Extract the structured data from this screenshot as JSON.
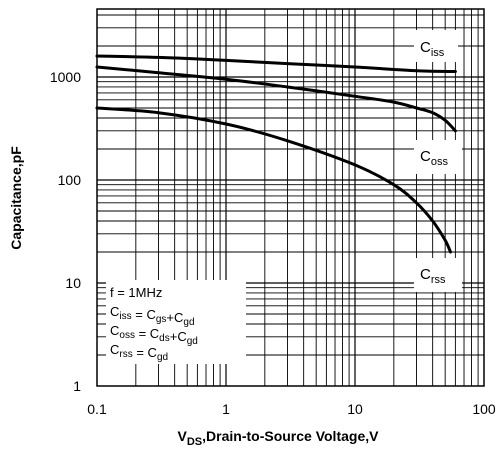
{
  "chart_data": {
    "type": "line",
    "x_scale": "log",
    "y_scale": "log",
    "xlim": [
      0.1,
      100
    ],
    "ylim": [
      1,
      5000
    ],
    "grid": true,
    "x_ticks": [
      "0.1",
      "1",
      "10",
      "100"
    ],
    "y_ticks": [
      "1",
      "10",
      "100",
      "1000"
    ],
    "xlabel": {
      "main": "V",
      "sub": "DS",
      "rest": ",Drain-to-Source Voltage,V"
    },
    "ylabel": "Capacitance,pF",
    "series": [
      {
        "name_main": "C",
        "name_sub": "iss",
        "x": [
          0.1,
          0.3,
          1,
          3,
          10,
          30,
          60
        ],
        "y": [
          1600,
          1550,
          1450,
          1350,
          1250,
          1150,
          1130
        ]
      },
      {
        "name_main": "C",
        "name_sub": "oss",
        "x": [
          0.1,
          0.3,
          1,
          3,
          10,
          20,
          30,
          40,
          50,
          60
        ],
        "y": [
          1250,
          1100,
          950,
          800,
          650,
          570,
          500,
          450,
          380,
          300
        ]
      },
      {
        "name_main": "C",
        "name_sub": "rss",
        "x": [
          0.1,
          0.3,
          1,
          3,
          10,
          20,
          30,
          40,
          50,
          55
        ],
        "y": [
          500,
          450,
          350,
          240,
          140,
          90,
          60,
          40,
          26,
          20
        ]
      }
    ],
    "annotation": [
      {
        "parts": [
          [
            "f = 1MHz",
            ""
          ]
        ]
      },
      {
        "parts": [
          [
            "C",
            "iss"
          ],
          [
            " = C",
            "gs"
          ],
          [
            "+C",
            "gd"
          ]
        ]
      },
      {
        "parts": [
          [
            "C",
            "oss"
          ],
          [
            " = C",
            "ds"
          ],
          [
            "+C",
            "gd"
          ]
        ]
      },
      {
        "parts": [
          [
            "C",
            "rss"
          ],
          [
            " = C",
            "gd"
          ]
        ]
      }
    ]
  }
}
